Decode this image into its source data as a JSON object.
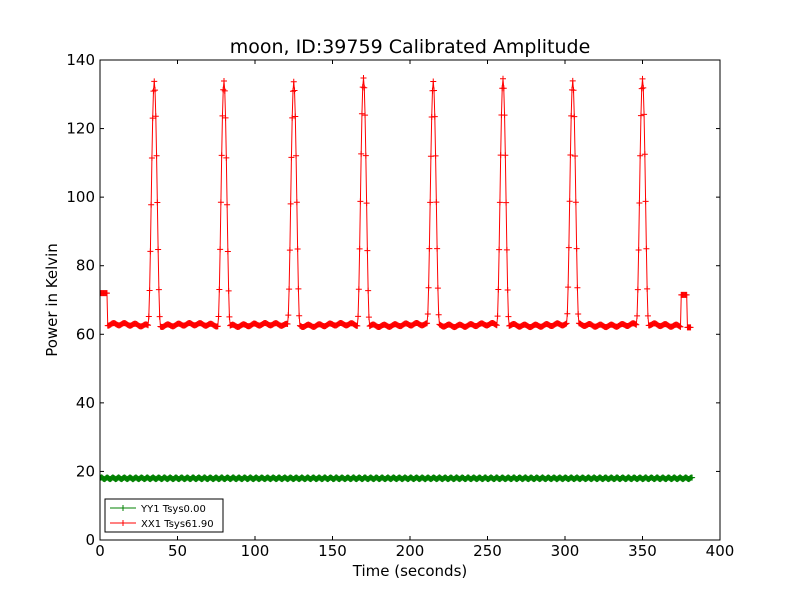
{
  "chart_data": {
    "type": "line",
    "title": "moon, ID:39759 Calibrated Amplitude",
    "xlabel": "Time (seconds)",
    "ylabel": "Power in Kelvin",
    "xlim": [
      0,
      400
    ],
    "ylim": [
      0,
      140
    ],
    "xticks": [
      "0",
      "50",
      "100",
      "150",
      "200",
      "250",
      "300",
      "350",
      "400"
    ],
    "yticks": [
      "0",
      "20",
      "40",
      "60",
      "80",
      "100",
      "120",
      "140"
    ],
    "grid": false,
    "legend_position": "lower-left",
    "series": [
      {
        "name": "YY1 Tsys0.00",
        "color": "#008000",
        "marker": "+",
        "x_start": 0,
        "x_end": 382,
        "x_step": 0.5,
        "constant_value": 18
      },
      {
        "name": "XX1 Tsys61.90",
        "color": "#ff0000",
        "marker": "+",
        "x_step": 0.5,
        "segments": [
          {
            "x_start": 0,
            "x_end": 5,
            "value": 72
          },
          {
            "x_start": 5,
            "x_end": 375,
            "baseline": 62.7
          },
          {
            "x_start": 375,
            "x_end": 379,
            "value": 71.5
          },
          {
            "x_start": 379,
            "x_end": 381,
            "value": 62
          }
        ],
        "peaks": [
          {
            "x": 35,
            "y": 134
          },
          {
            "x": 80,
            "y": 134
          },
          {
            "x": 125,
            "y": 134
          },
          {
            "x": 170,
            "y": 134.5
          },
          {
            "x": 215,
            "y": 134
          },
          {
            "x": 260,
            "y": 134
          },
          {
            "x": 305,
            "y": 134
          },
          {
            "x": 350,
            "y": 134
          }
        ],
        "peak_half_width_s": 4
      }
    ]
  }
}
